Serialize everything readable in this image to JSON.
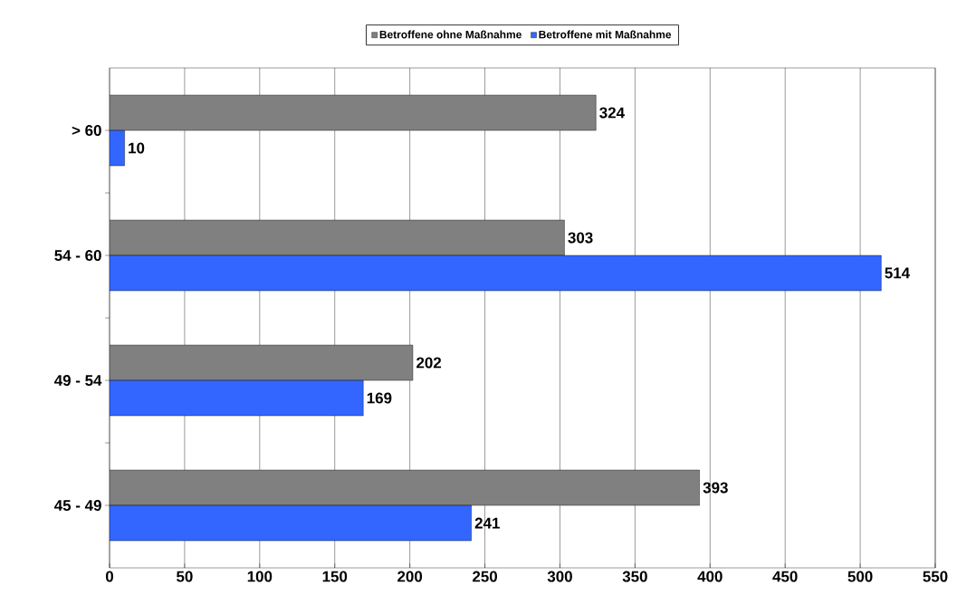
{
  "chart_data": {
    "type": "bar",
    "orientation": "horizontal",
    "categories": [
      "> 60",
      "54 - 60",
      "49 - 54",
      "45 - 49"
    ],
    "series": [
      {
        "name": "Betroffene ohne Maßnahme",
        "color": "#808080",
        "values": [
          324,
          303,
          202,
          393
        ]
      },
      {
        "name": "Betroffene mit Maßnahme",
        "color": "#3366ff",
        "values": [
          10,
          514,
          169,
          241
        ]
      }
    ],
    "xlim": [
      0,
      550
    ],
    "xticks": [
      0,
      50,
      100,
      150,
      200,
      250,
      300,
      350,
      400,
      450,
      500,
      550
    ],
    "grid": "x",
    "legend": "top",
    "data_labels": true
  }
}
